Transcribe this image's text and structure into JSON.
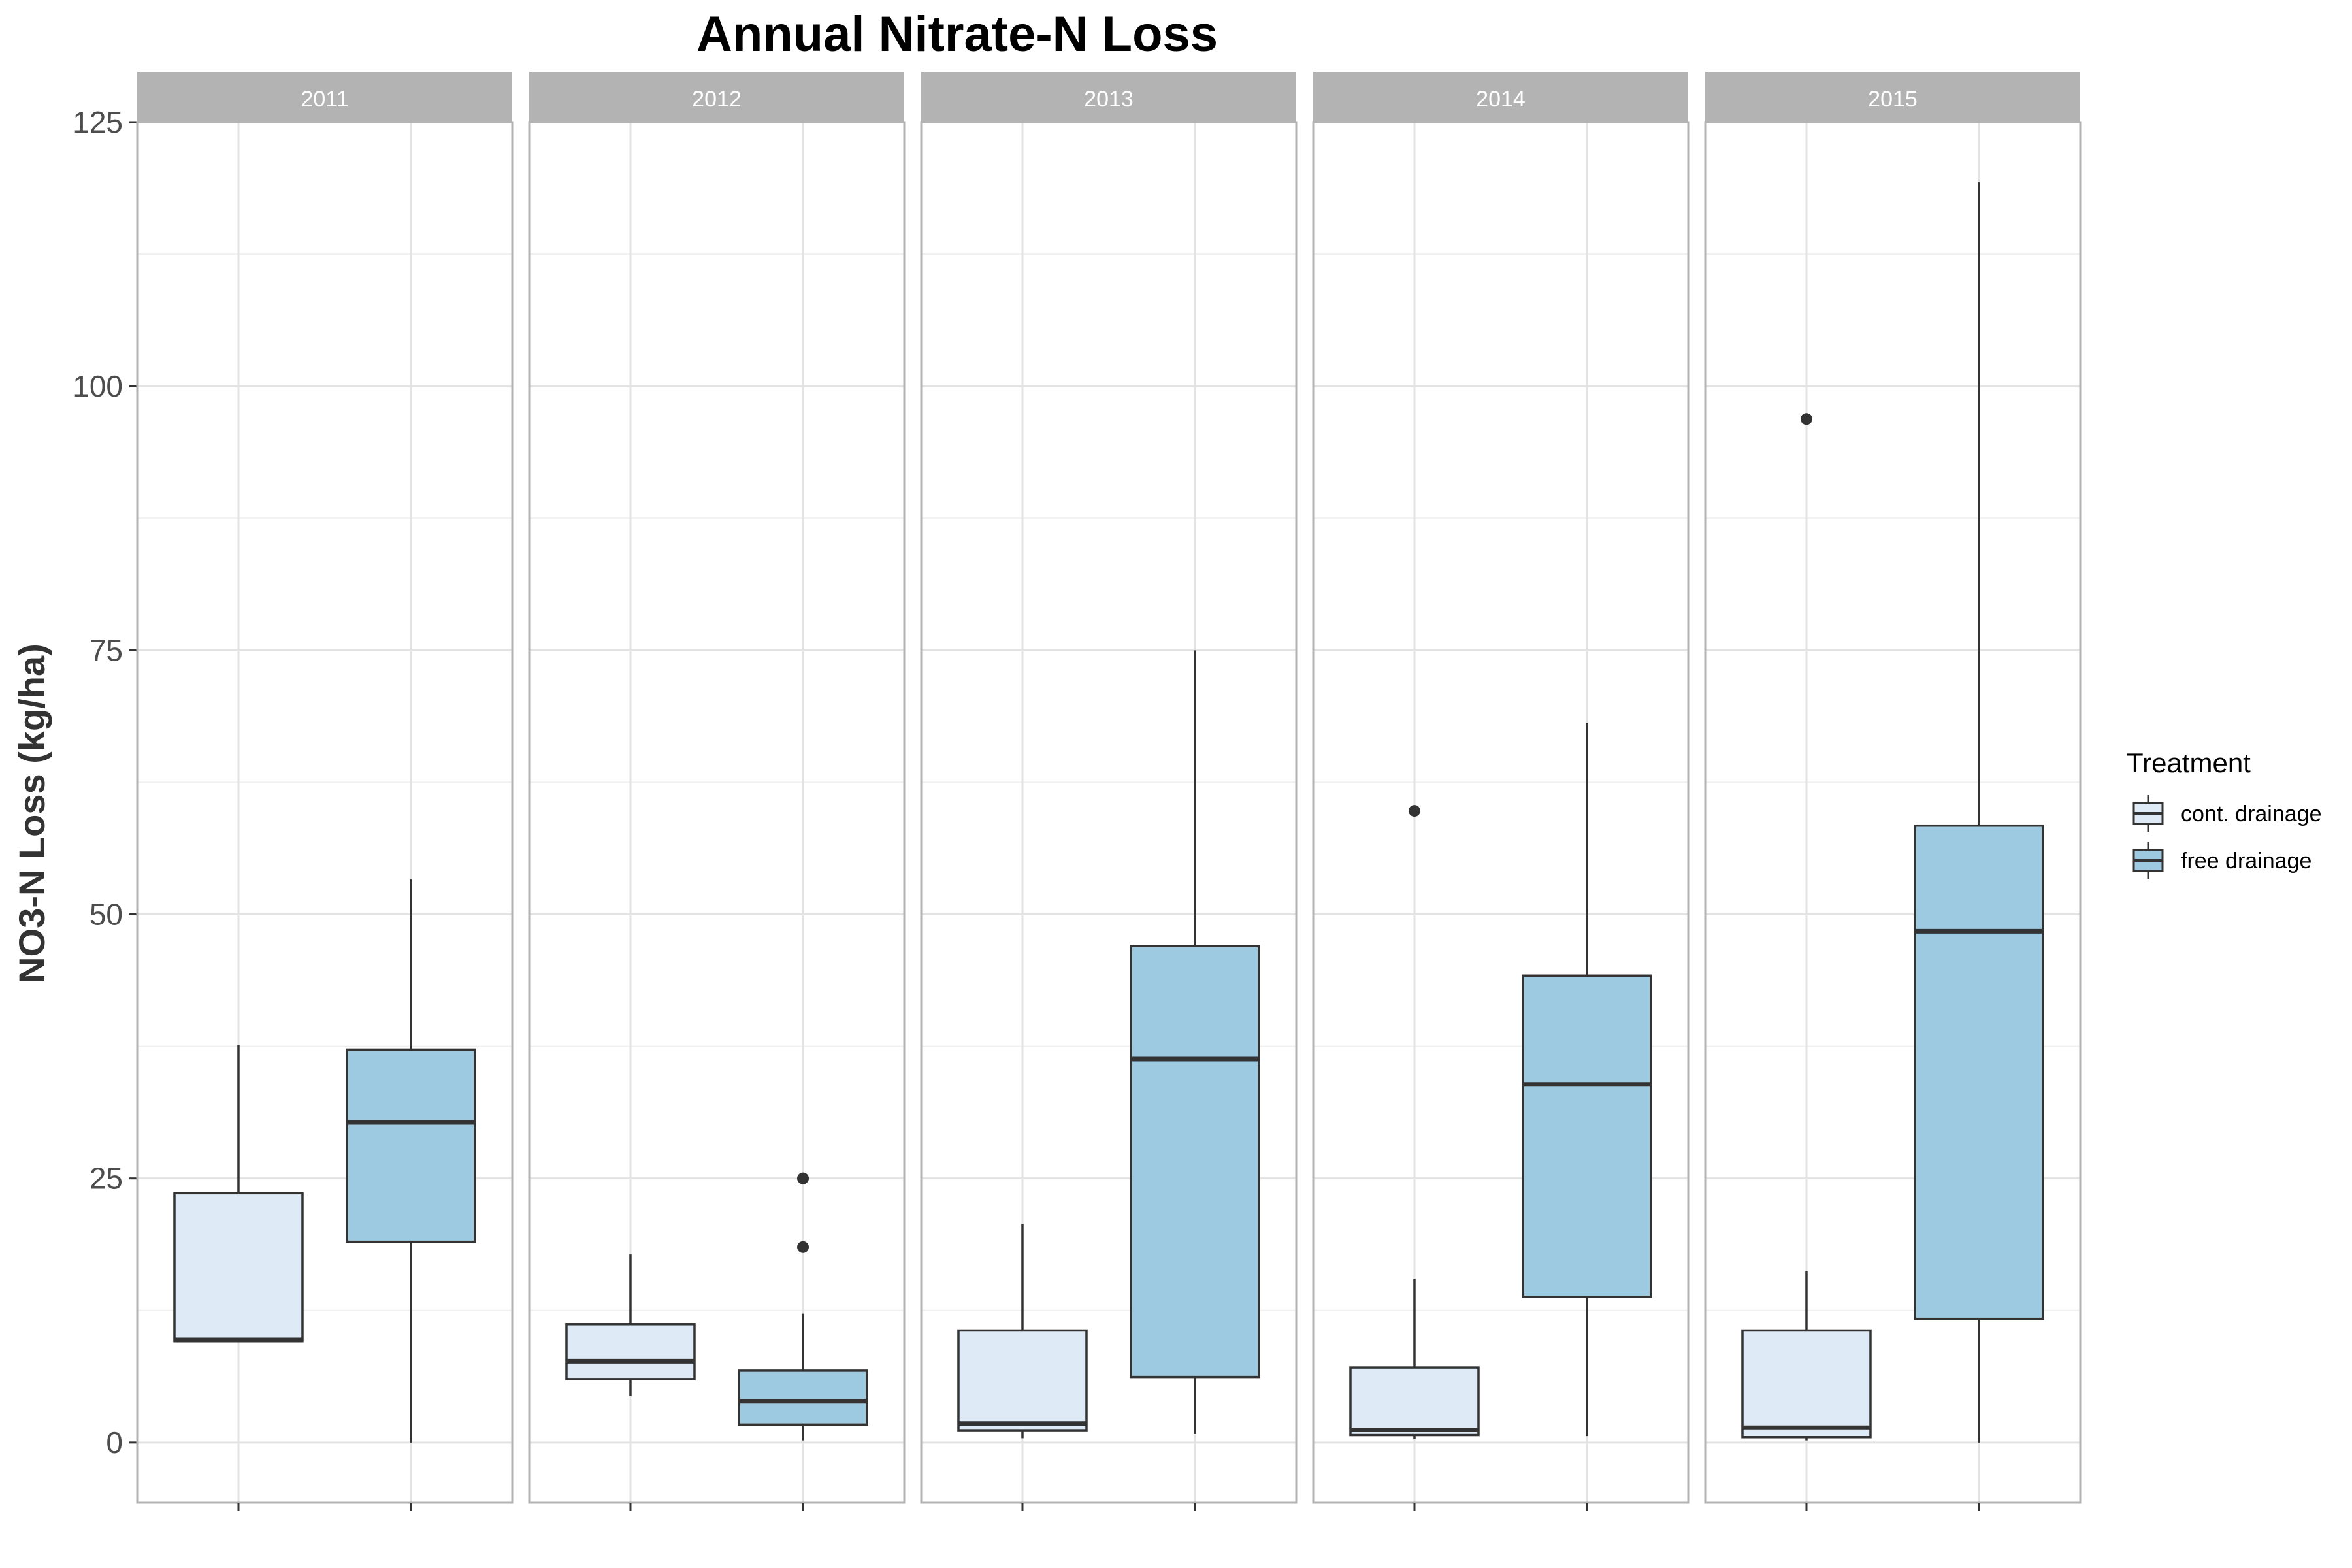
{
  "chart_data": {
    "type": "boxplot",
    "title": "Annual Nitrate-N Loss",
    "xlabel": "",
    "ylabel": "NO3-N Loss (kg/ha)",
    "ylim": [
      -5.7,
      125
    ],
    "yticks": [
      0,
      25,
      50,
      75,
      100,
      125
    ],
    "grid": true,
    "facets": [
      "2011",
      "2012",
      "2013",
      "2014",
      "2015"
    ],
    "legend": {
      "title": "Treatment",
      "position": "right",
      "entries": [
        {
          "name": "cont. drainage",
          "color": "#deebf7"
        },
        {
          "name": "free drainage",
          "color": "#9ecae1"
        }
      ]
    },
    "series": [
      {
        "name": "cont. drainage",
        "color": "#deebf7",
        "boxes": [
          {
            "facet": "2011",
            "min": 9.6,
            "q1": 9.6,
            "median": 9.7,
            "q3": 23.6,
            "max": 37.6,
            "outliers": []
          },
          {
            "facet": "2012",
            "min": 4.4,
            "q1": 6.0,
            "median": 7.7,
            "q3": 11.2,
            "max": 17.8,
            "outliers": []
          },
          {
            "facet": "2013",
            "min": 0.4,
            "q1": 1.1,
            "median": 1.8,
            "q3": 10.6,
            "max": 20.7,
            "outliers": []
          },
          {
            "facet": "2014",
            "min": 0.3,
            "q1": 0.7,
            "median": 1.2,
            "q3": 7.1,
            "max": 15.5,
            "outliers": [
              59.8
            ]
          },
          {
            "facet": "2015",
            "min": 0.2,
            "q1": 0.5,
            "median": 1.4,
            "q3": 10.6,
            "max": 16.2,
            "outliers": [
              96.9
            ]
          }
        ]
      },
      {
        "name": "free drainage",
        "color": "#9ecae1",
        "boxes": [
          {
            "facet": "2011",
            "min": 0.0,
            "q1": 19.0,
            "median": 30.3,
            "q3": 37.2,
            "max": 53.3,
            "outliers": []
          },
          {
            "facet": "2012",
            "min": 0.2,
            "q1": 1.7,
            "median": 3.9,
            "q3": 6.8,
            "max": 12.2,
            "outliers": [
              18.5,
              25.0
            ]
          },
          {
            "facet": "2013",
            "min": 0.8,
            "q1": 6.2,
            "median": 36.3,
            "q3": 47.0,
            "max": 75.0,
            "outliers": []
          },
          {
            "facet": "2014",
            "min": 0.6,
            "q1": 13.8,
            "median": 33.9,
            "q3": 44.2,
            "max": 68.1,
            "outliers": []
          },
          {
            "facet": "2015",
            "min": 0.0,
            "q1": 11.7,
            "median": 48.4,
            "q3": 58.4,
            "max": 119.3,
            "outliers": []
          }
        ]
      }
    ]
  }
}
